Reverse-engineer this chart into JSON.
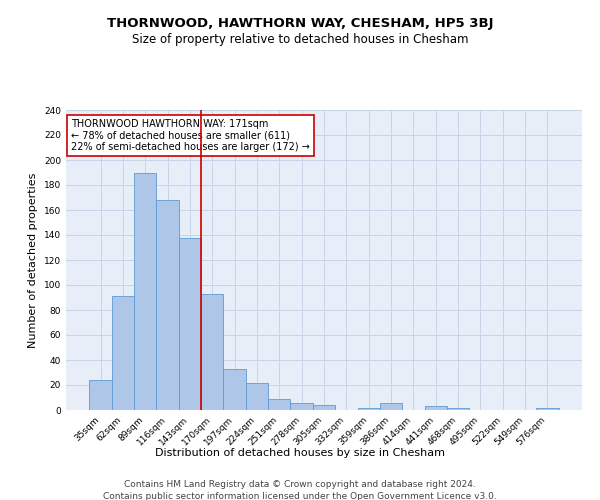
{
  "title": "THORNWOOD, HAWTHORN WAY, CHESHAM, HP5 3BJ",
  "subtitle": "Size of property relative to detached houses in Chesham",
  "xlabel": "Distribution of detached houses by size in Chesham",
  "ylabel": "Number of detached properties",
  "categories": [
    "35sqm",
    "62sqm",
    "89sqm",
    "116sqm",
    "143sqm",
    "170sqm",
    "197sqm",
    "224sqm",
    "251sqm",
    "278sqm",
    "305sqm",
    "332sqm",
    "359sqm",
    "386sqm",
    "414sqm",
    "441sqm",
    "468sqm",
    "495sqm",
    "522sqm",
    "549sqm",
    "576sqm"
  ],
  "values": [
    24,
    91,
    190,
    168,
    138,
    93,
    33,
    22,
    9,
    6,
    4,
    0,
    2,
    6,
    0,
    3,
    2,
    0,
    0,
    0,
    2
  ],
  "bar_color": "#aec6e8",
  "bar_edge_color": "#5b9bd5",
  "vline_index": 5,
  "vline_color": "#cc0000",
  "annotation_text": "THORNWOOD HAWTHORN WAY: 171sqm\n← 78% of detached houses are smaller (611)\n22% of semi-detached houses are larger (172) →",
  "annotation_box_color": "white",
  "annotation_box_edge": "#cc0000",
  "ylim": [
    0,
    240
  ],
  "yticks": [
    0,
    20,
    40,
    60,
    80,
    100,
    120,
    140,
    160,
    180,
    200,
    220,
    240
  ],
  "grid_color": "#c8d4e8",
  "background_color": "#e8eef8",
  "footer_line1": "Contains HM Land Registry data © Crown copyright and database right 2024.",
  "footer_line2": "Contains public sector information licensed under the Open Government Licence v3.0.",
  "title_fontsize": 9.5,
  "subtitle_fontsize": 8.5,
  "xlabel_fontsize": 8,
  "ylabel_fontsize": 8,
  "tick_fontsize": 6.5,
  "annotation_fontsize": 7,
  "footer_fontsize": 6.5
}
